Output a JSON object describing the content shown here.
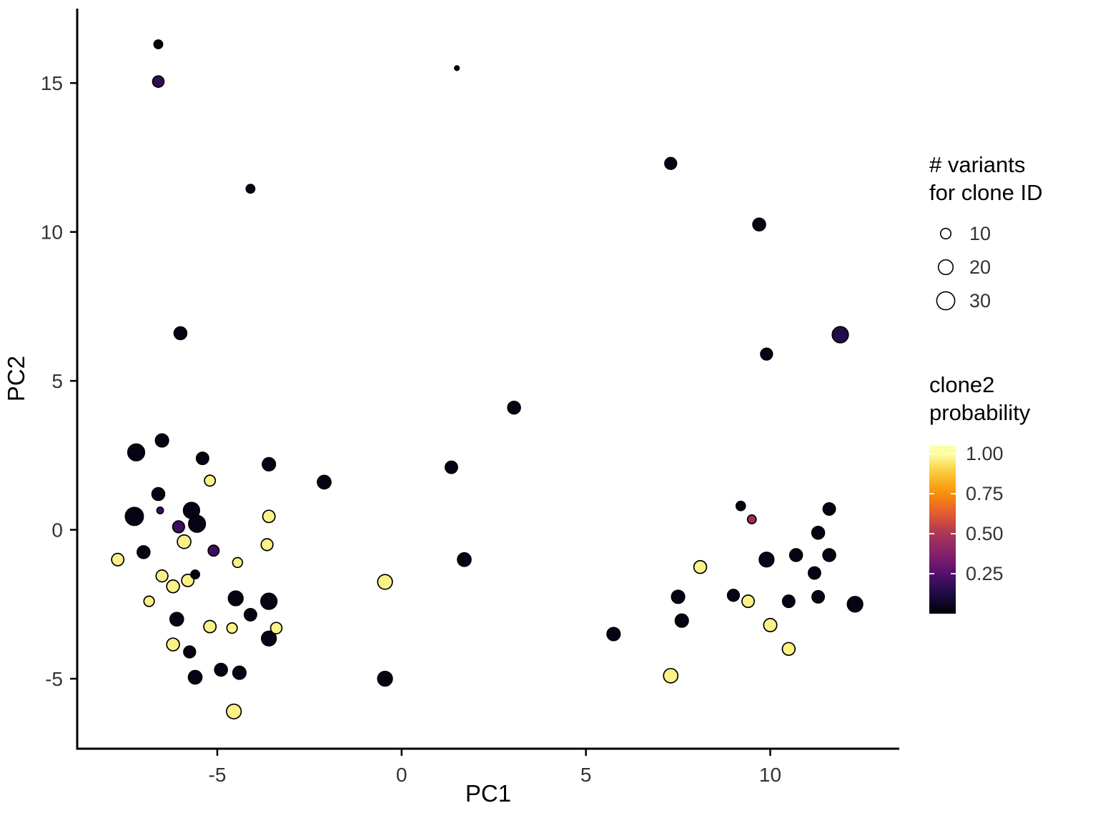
{
  "chart_data": {
    "type": "scatter",
    "title": "",
    "xlabel": "PC1",
    "ylabel": "PC2",
    "xlim": [
      -8.8,
      13.5
    ],
    "ylim": [
      -7.35,
      17.5
    ],
    "x_ticks": [
      -5,
      0,
      5,
      10
    ],
    "y_ticks": [
      -5,
      0,
      5,
      10,
      15
    ],
    "grid": false,
    "size_variable": "# variants for clone ID",
    "color_variable": "clone2 probability",
    "points": [
      {
        "x": -6.6,
        "y": 16.3,
        "n": 7,
        "p": 0.03
      },
      {
        "x": -6.6,
        "y": 15.05,
        "n": 12,
        "p": 0.17
      },
      {
        "x": 1.5,
        "y": 15.5,
        "n": 2,
        "p": 0.03
      },
      {
        "x": -4.1,
        "y": 11.45,
        "n": 7,
        "p": 0.03
      },
      {
        "x": 7.3,
        "y": 12.3,
        "n": 13,
        "p": 0.03
      },
      {
        "x": 9.7,
        "y": 10.25,
        "n": 15,
        "p": 0.03
      },
      {
        "x": -6.0,
        "y": 6.6,
        "n": 15,
        "p": 0.03
      },
      {
        "x": 11.9,
        "y": 6.55,
        "n": 24,
        "p": 0.14
      },
      {
        "x": 9.9,
        "y": 5.9,
        "n": 13,
        "p": 0.03
      },
      {
        "x": 3.05,
        "y": 4.1,
        "n": 15,
        "p": 0.03
      },
      {
        "x": 1.35,
        "y": 2.1,
        "n": 14,
        "p": 0.03
      },
      {
        "x": -7.2,
        "y": 2.6,
        "n": 26,
        "p": 0.03
      },
      {
        "x": -6.5,
        "y": 3.0,
        "n": 16,
        "p": 0.03
      },
      {
        "x": -5.4,
        "y": 2.4,
        "n": 14,
        "p": 0.03
      },
      {
        "x": -3.6,
        "y": 2.2,
        "n": 16,
        "p": 0.03
      },
      {
        "x": -2.1,
        "y": 1.6,
        "n": 17,
        "p": 0.03
      },
      {
        "x": -5.2,
        "y": 1.65,
        "n": 11,
        "p": 0.97
      },
      {
        "x": -6.6,
        "y": 1.2,
        "n": 15,
        "p": 0.03
      },
      {
        "x": -6.55,
        "y": 0.65,
        "n": 4,
        "p": 0.2
      },
      {
        "x": -7.25,
        "y": 0.45,
        "n": 30,
        "p": 0.03
      },
      {
        "x": -5.7,
        "y": 0.65,
        "n": 24,
        "p": 0.03
      },
      {
        "x": -6.05,
        "y": 0.1,
        "n": 13,
        "p": 0.2
      },
      {
        "x": -5.55,
        "y": 0.2,
        "n": 26,
        "p": 0.03
      },
      {
        "x": -3.6,
        "y": 0.45,
        "n": 14,
        "p": 0.97
      },
      {
        "x": -3.65,
        "y": -0.5,
        "n": 13,
        "p": 0.97
      },
      {
        "x": -5.9,
        "y": -0.4,
        "n": 17,
        "p": 0.97
      },
      {
        "x": -5.1,
        "y": -0.7,
        "n": 11,
        "p": 0.2
      },
      {
        "x": -7.0,
        "y": -0.75,
        "n": 15,
        "p": 0.03
      },
      {
        "x": -7.7,
        "y": -1.0,
        "n": 14,
        "p": 0.97
      },
      {
        "x": -4.45,
        "y": -1.1,
        "n": 9,
        "p": 0.97
      },
      {
        "x": 1.7,
        "y": -1.0,
        "n": 17,
        "p": 0.03
      },
      {
        "x": -6.5,
        "y": -1.55,
        "n": 13,
        "p": 0.97
      },
      {
        "x": -6.2,
        "y": -1.9,
        "n": 15,
        "p": 0.97
      },
      {
        "x": -5.8,
        "y": -1.7,
        "n": 14,
        "p": 0.97
      },
      {
        "x": -6.85,
        "y": -2.4,
        "n": 10,
        "p": 0.97
      },
      {
        "x": -5.6,
        "y": -1.5,
        "n": 7,
        "p": 0.03
      },
      {
        "x": -0.45,
        "y": -1.75,
        "n": 20,
        "p": 0.97
      },
      {
        "x": -4.5,
        "y": -2.3,
        "n": 20,
        "p": 0.03
      },
      {
        "x": -3.6,
        "y": -2.4,
        "n": 24,
        "p": 0.03
      },
      {
        "x": -4.1,
        "y": -2.85,
        "n": 14,
        "p": 0.03
      },
      {
        "x": -4.6,
        "y": -3.3,
        "n": 10,
        "p": 0.97
      },
      {
        "x": -5.2,
        "y": -3.25,
        "n": 14,
        "p": 0.97
      },
      {
        "x": -3.4,
        "y": -3.3,
        "n": 12,
        "p": 0.97
      },
      {
        "x": -6.1,
        "y": -3.0,
        "n": 17,
        "p": 0.03
      },
      {
        "x": -6.2,
        "y": -3.85,
        "n": 15,
        "p": 0.97
      },
      {
        "x": -5.75,
        "y": -4.1,
        "n": 13,
        "p": 0.03
      },
      {
        "x": -3.6,
        "y": -3.65,
        "n": 20,
        "p": 0.03
      },
      {
        "x": -5.6,
        "y": -4.95,
        "n": 17,
        "p": 0.03
      },
      {
        "x": -4.9,
        "y": -4.7,
        "n": 15,
        "p": 0.03
      },
      {
        "x": -4.4,
        "y": -4.8,
        "n": 16,
        "p": 0.03
      },
      {
        "x": -0.45,
        "y": -5.0,
        "n": 20,
        "p": 0.03
      },
      {
        "x": -4.55,
        "y": -6.1,
        "n": 20,
        "p": 0.97
      },
      {
        "x": 9.2,
        "y": 0.8,
        "n": 8,
        "p": 0.03
      },
      {
        "x": 9.5,
        "y": 0.35,
        "n": 7,
        "p": 0.45
      },
      {
        "x": 11.6,
        "y": 0.7,
        "n": 14,
        "p": 0.03
      },
      {
        "x": 11.3,
        "y": -0.1,
        "n": 15,
        "p": 0.03
      },
      {
        "x": 9.9,
        "y": -1.0,
        "n": 20,
        "p": 0.03
      },
      {
        "x": 10.7,
        "y": -0.85,
        "n": 15,
        "p": 0.03
      },
      {
        "x": 11.6,
        "y": -0.85,
        "n": 15,
        "p": 0.03
      },
      {
        "x": 11.2,
        "y": -1.45,
        "n": 14,
        "p": 0.03
      },
      {
        "x": 8.1,
        "y": -1.25,
        "n": 15,
        "p": 0.97
      },
      {
        "x": 7.5,
        "y": -2.25,
        "n": 16,
        "p": 0.03
      },
      {
        "x": 9.0,
        "y": -2.2,
        "n": 13,
        "p": 0.03
      },
      {
        "x": 9.4,
        "y": -2.4,
        "n": 14,
        "p": 0.97
      },
      {
        "x": 10.5,
        "y": -2.4,
        "n": 14,
        "p": 0.03
      },
      {
        "x": 11.3,
        "y": -2.25,
        "n": 14,
        "p": 0.03
      },
      {
        "x": 12.3,
        "y": -2.5,
        "n": 22,
        "p": 0.03
      },
      {
        "x": 7.6,
        "y": -3.05,
        "n": 16,
        "p": 0.03
      },
      {
        "x": 10.0,
        "y": -3.2,
        "n": 16,
        "p": 0.97
      },
      {
        "x": 5.75,
        "y": -3.5,
        "n": 16,
        "p": 0.03
      },
      {
        "x": 10.5,
        "y": -4.0,
        "n": 15,
        "p": 0.97
      },
      {
        "x": 7.3,
        "y": -4.9,
        "n": 19,
        "p": 0.97
      }
    ]
  },
  "legends": {
    "size": {
      "title": "# variants\nfor clone ID",
      "entries": [
        10,
        20,
        30
      ]
    },
    "color": {
      "title": "clone2\nprobability",
      "ticks": [
        1.0,
        0.75,
        0.5,
        0.25
      ],
      "tick_labels": [
        "1.00",
        "0.75",
        "0.50",
        "0.25"
      ]
    }
  },
  "colors": {
    "axis": "#000000",
    "tick_text": "#333333",
    "title_text": "#000000",
    "point_stroke": "#000000",
    "background": "#ffffff",
    "colormap_stops": [
      [
        0.0,
        "#000004"
      ],
      [
        0.13,
        "#1f0c48"
      ],
      [
        0.25,
        "#550f6d"
      ],
      [
        0.38,
        "#88226a"
      ],
      [
        0.5,
        "#a83655"
      ],
      [
        0.62,
        "#e35933"
      ],
      [
        0.75,
        "#f98e09"
      ],
      [
        0.88,
        "#f9c932"
      ],
      [
        1.0,
        "#fcffa4"
      ]
    ]
  }
}
